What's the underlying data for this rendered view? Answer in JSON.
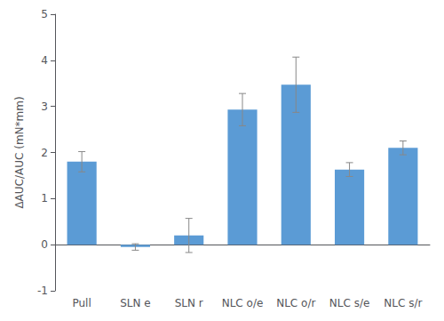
{
  "chart_data": {
    "type": "bar",
    "categories": [
      "Pull",
      "SLN e",
      "SLN r",
      "NLC o/e",
      "NLC o/r",
      "NLC s/e",
      "NLC s/r"
    ],
    "values": [
      1.8,
      -0.05,
      0.2,
      2.93,
      3.47,
      1.63,
      2.1
    ],
    "errors": [
      0.22,
      0.07,
      0.37,
      0.35,
      0.6,
      0.15,
      0.15
    ],
    "color": "#5b9bd5",
    "ylabel": "ΔAUC/AUC (mN*mm)",
    "ylim": [
      -1,
      5
    ],
    "yticks": [
      -1,
      0,
      1,
      2,
      3,
      4,
      5
    ],
    "grid": false
  }
}
